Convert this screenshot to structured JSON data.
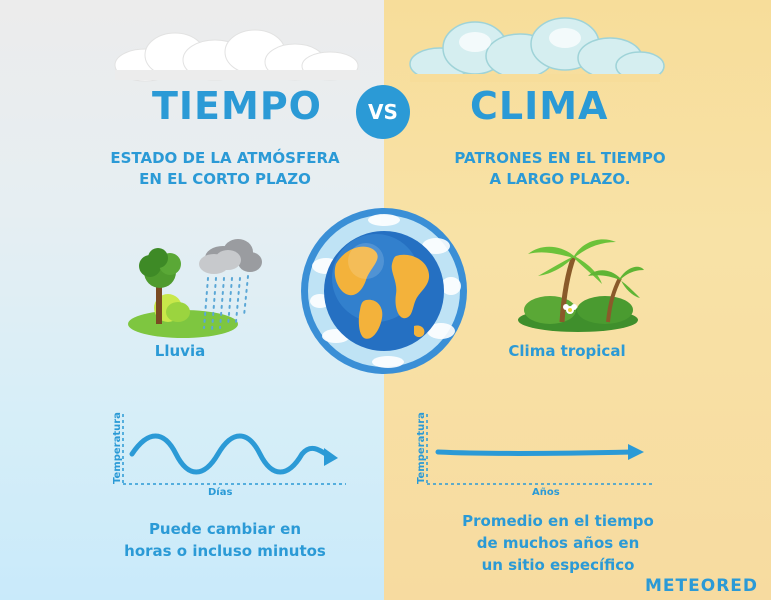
{
  "left": {
    "title": "TIEMPO",
    "subtitle_line1": "ESTADO DE LA ATMÓSFERA",
    "subtitle_line2": "EN EL CORTO PLAZO",
    "example_caption": "Lluvia",
    "graph_ylabel": "Temperatura",
    "graph_xlabel": "Días",
    "bottom_line1": "Puede cambiar en",
    "bottom_line2": "horas o incluso minutos"
  },
  "vs_label": "VS",
  "right": {
    "title": "CLIMA",
    "subtitle_line1": "PATRONES EN EL TIEMPO",
    "subtitle_line2": "A LARGO PLAZO.",
    "example_caption": "Clima tropical",
    "graph_ylabel": "Temperatura",
    "graph_xlabel": "Años",
    "bottom_line1": "Promedio en el tiempo",
    "bottom_line2": "de muchos años en",
    "bottom_line3": "un sitio específico"
  },
  "brand": "METEORED",
  "colors": {
    "accent_blue": "#2b9ad6",
    "left_bg": "#d6eef8",
    "right_bg": "#f8e2a6"
  },
  "icons": {
    "left_clouds": "cloud-icon",
    "right_clouds": "cloud-icon",
    "globe": "earth-globe-icon",
    "rain": "tree-rain-cloud-icon",
    "tropical": "palm-trees-icon"
  }
}
